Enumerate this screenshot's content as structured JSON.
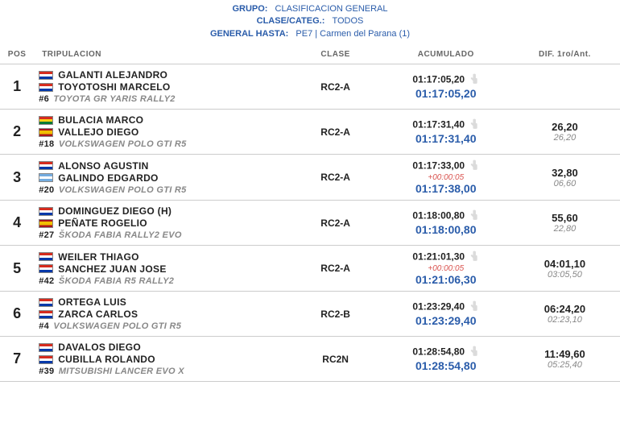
{
  "header": {
    "grupo_label": "GRUPO:",
    "grupo_value": "CLASIFICACION GENERAL",
    "clase_label": "CLASE/CATEG.:",
    "clase_value": "TODOS",
    "general_label": "GENERAL HASTA:",
    "general_value": "PE7 | Carmen del Parana (1)"
  },
  "columns": {
    "pos": "POS",
    "crew": "TRIPULACION",
    "class": "CLASE",
    "acc": "ACUMULADO",
    "diff": "DIF. 1ro/Ant."
  },
  "colors": {
    "header_text": "#2a5caa",
    "time_blue": "#2a5caa",
    "penalty_red": "#d9534f",
    "muted": "#888888",
    "text": "#222222",
    "border": "#cccccc",
    "bg": "#ffffff"
  },
  "rows": [
    {
      "pos": "1",
      "driver": "GALANTI ALEJANDRO",
      "driver_flag": "py",
      "codriver": "TOYOTOSHI MARCELO",
      "codriver_flag": "py",
      "car_num": "#6",
      "car": "TOYOTA GR YARIS RALLY2",
      "class": "RC2-A",
      "time_raw": "01:17:05,20",
      "penalty": "",
      "time_total": "01:17:05,20",
      "diff_first": "",
      "diff_prev": ""
    },
    {
      "pos": "2",
      "driver": "BULACIA MARCO",
      "driver_flag": "bo",
      "codriver": "VALLEJO DIEGO",
      "codriver_flag": "es",
      "car_num": "#18",
      "car": "VOLKSWAGEN POLO GTI R5",
      "class": "RC2-A",
      "time_raw": "01:17:31,40",
      "penalty": "",
      "time_total": "01:17:31,40",
      "diff_first": "26,20",
      "diff_prev": "26,20"
    },
    {
      "pos": "3",
      "driver": "ALONSO AGUSTIN",
      "driver_flag": "py",
      "codriver": "GALINDO EDGARDO",
      "codriver_flag": "ar",
      "car_num": "#20",
      "car": "VOLKSWAGEN POLO GTI R5",
      "class": "RC2-A",
      "time_raw": "01:17:33,00",
      "penalty": "+00:00:05",
      "time_total": "01:17:38,00",
      "diff_first": "32,80",
      "diff_prev": "06,60"
    },
    {
      "pos": "4",
      "driver": "DOMINGUEZ DIEGO (H)",
      "driver_flag": "py",
      "codriver": "PEÑATE ROGELIO",
      "codriver_flag": "es",
      "car_num": "#27",
      "car": "ŠKODA FABIA RALLY2 EVO",
      "class": "RC2-A",
      "time_raw": "01:18:00,80",
      "penalty": "",
      "time_total": "01:18:00,80",
      "diff_first": "55,60",
      "diff_prev": "22,80"
    },
    {
      "pos": "5",
      "driver": "WEILER THIAGO",
      "driver_flag": "py",
      "codriver": "SANCHEZ JUAN JOSE",
      "codriver_flag": "py",
      "car_num": "#42",
      "car": "ŠKODA FABIA R5 RALLY2",
      "class": "RC2-A",
      "time_raw": "01:21:01,30",
      "penalty": "+00:00:05",
      "time_total": "01:21:06,30",
      "diff_first": "04:01,10",
      "diff_prev": "03:05,50"
    },
    {
      "pos": "6",
      "driver": "ORTEGA LUIS",
      "driver_flag": "py",
      "codriver": "ZARCA CARLOS",
      "codriver_flag": "py",
      "car_num": "#4",
      "car": "VOLKSWAGEN POLO GTI R5",
      "class": "RC2-B",
      "time_raw": "01:23:29,40",
      "penalty": "",
      "time_total": "01:23:29,40",
      "diff_first": "06:24,20",
      "diff_prev": "02:23,10"
    },
    {
      "pos": "7",
      "driver": "DAVALOS DIEGO",
      "driver_flag": "py",
      "codriver": "CUBILLA ROLANDO",
      "codriver_flag": "py",
      "car_num": "#39",
      "car": "MITSUBISHI LANCER EVO X",
      "class": "RC2N",
      "time_raw": "01:28:54,80",
      "penalty": "",
      "time_total": "01:28:54,80",
      "diff_first": "11:49,60",
      "diff_prev": "05:25,40"
    }
  ]
}
